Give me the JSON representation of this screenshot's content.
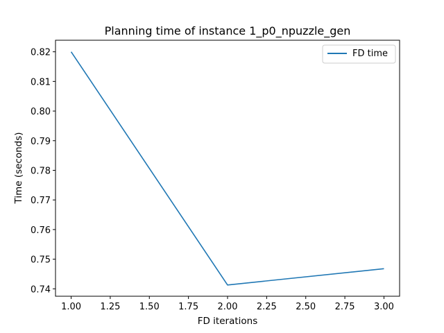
{
  "chart_data": {
    "type": "line",
    "title": "Planning time of instance 1_p0_npuzzle_gen",
    "xlabel": "FD iterations",
    "ylabel": "Time (seconds)",
    "xlim": [
      0.9,
      3.1
    ],
    "ylim": [
      0.7375,
      0.8239
    ],
    "xticks": [
      "1.00",
      "1.25",
      "1.50",
      "1.75",
      "2.00",
      "2.25",
      "2.50",
      "2.75",
      "3.00"
    ],
    "yticks": [
      "0.74",
      "0.75",
      "0.76",
      "0.77",
      "0.78",
      "0.79",
      "0.80",
      "0.81",
      "0.82"
    ],
    "grid": false,
    "legend_position": "top-right",
    "series": [
      {
        "name": "FD time",
        "color": "#1f77b4",
        "x": [
          1,
          2,
          3
        ],
        "y": [
          0.82,
          0.7413,
          0.7468
        ]
      }
    ]
  }
}
